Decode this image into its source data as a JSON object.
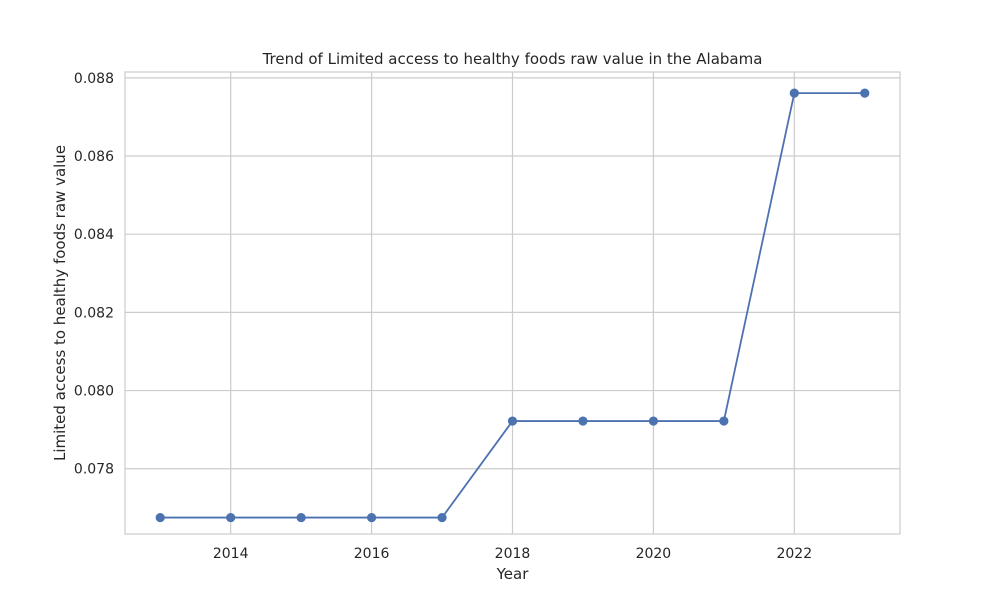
{
  "chart_data": {
    "type": "line",
    "title": "Trend of Limited access to healthy foods raw value in the Alabama",
    "xlabel": "Year",
    "ylabel": "Limited access to healthy foods raw value",
    "x": [
      2013,
      2014,
      2015,
      2016,
      2017,
      2018,
      2019,
      2020,
      2021,
      2022,
      2023
    ],
    "series": [
      {
        "values": [
          0.07675,
          0.07675,
          0.07675,
          0.07675,
          0.07675,
          0.07922,
          0.07922,
          0.07922,
          0.07922,
          0.08761,
          0.08761
        ],
        "color": "#4c72b0"
      }
    ],
    "xticks": [
      2014,
      2016,
      2018,
      2020,
      2022
    ],
    "xtick_labels": [
      "2014",
      "2016",
      "2018",
      "2020",
      "2022"
    ],
    "yticks": [
      0.078,
      0.08,
      0.082,
      0.084,
      0.086,
      0.088
    ],
    "ytick_labels": [
      "0.078",
      "0.080",
      "0.082",
      "0.084",
      "0.086",
      "0.088"
    ],
    "xlim": [
      2012.5,
      2023.5
    ],
    "ylim": [
      0.07633,
      0.08815
    ],
    "grid": true,
    "legend": false
  }
}
